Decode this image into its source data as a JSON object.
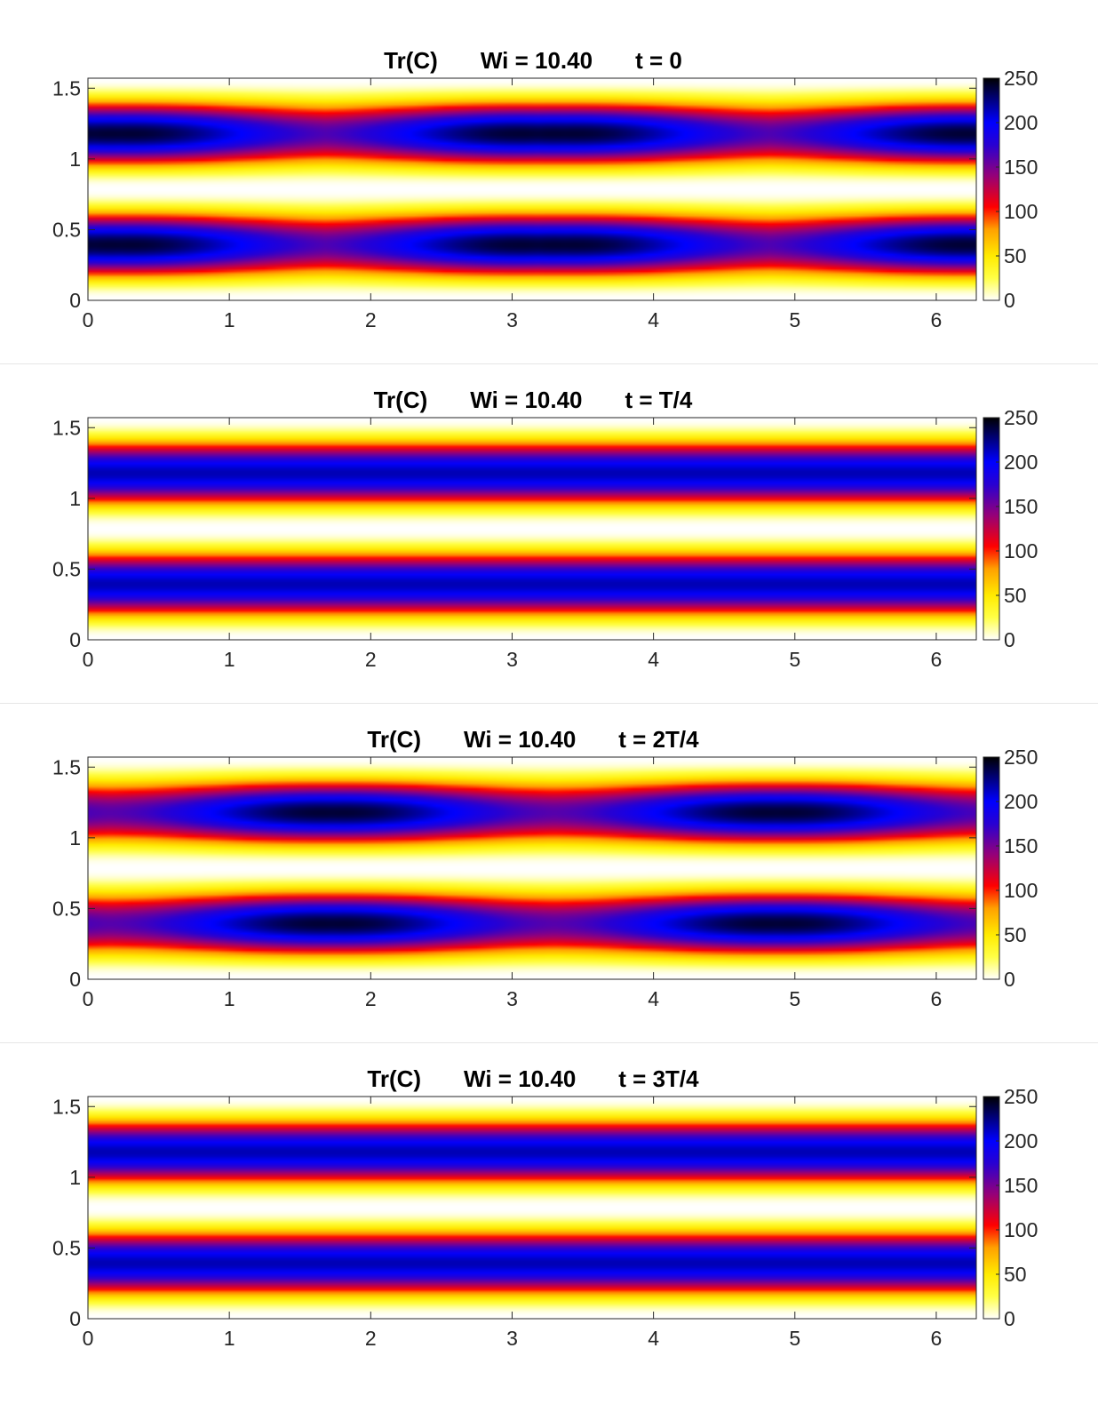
{
  "chart_data": [
    {
      "type": "heatmap",
      "title_parts": [
        "Tr(C)",
        "Wi = 10.40",
        "t = 0"
      ],
      "xlim": [
        0,
        6.2832
      ],
      "ylim": [
        0,
        1.5708
      ],
      "xticks": [
        0,
        1,
        2,
        3,
        4,
        5,
        6
      ],
      "xtick_labels": [
        "0",
        "1",
        "2",
        "3",
        "4",
        "5",
        "6"
      ],
      "yticks": [
        0,
        0.5,
        1,
        1.5
      ],
      "ytick_labels": [
        "0",
        "0.5",
        "1",
        "1.5"
      ],
      "colorbar": {
        "min": 0,
        "max": 250,
        "ticks": [
          0,
          50,
          100,
          150,
          200,
          250
        ],
        "tick_labels": [
          "0",
          "50",
          "100",
          "150",
          "200",
          "250"
        ],
        "colormap": "inverted hot (white-yellow-red-blue-black)"
      },
      "field": {
        "bands_y": [
          0.39,
          1.18
        ],
        "band_peak": 200,
        "modulation": 40,
        "modulation_x_wavenumber": 2,
        "max_value_at_x": [
          0.3,
          3.3,
          6.2
        ],
        "min_value_at_y": [
          0.0,
          0.79,
          1.57
        ],
        "min_value": 0
      }
    },
    {
      "type": "heatmap",
      "title_parts": [
        "Tr(C)",
        "Wi = 10.40",
        "t = T/4"
      ],
      "xlim": [
        0,
        6.2832
      ],
      "ylim": [
        0,
        1.5708
      ],
      "xticks": [
        0,
        1,
        2,
        3,
        4,
        5,
        6
      ],
      "xtick_labels": [
        "0",
        "1",
        "2",
        "3",
        "4",
        "5",
        "6"
      ],
      "yticks": [
        0,
        0.5,
        1,
        1.5
      ],
      "ytick_labels": [
        "0",
        "0.5",
        "1",
        "1.5"
      ],
      "colorbar": {
        "min": 0,
        "max": 250,
        "ticks": [
          0,
          50,
          100,
          150,
          200,
          250
        ],
        "tick_labels": [
          "0",
          "50",
          "100",
          "150",
          "200",
          "250"
        ],
        "colormap": "inverted hot (white-yellow-red-blue-black)"
      },
      "field": {
        "bands_y": [
          0.39,
          1.18
        ],
        "band_peak": 215,
        "modulation": 0,
        "modulation_x_wavenumber": 2,
        "max_value_at_x": [],
        "min_value_at_y": [
          0.0,
          0.79,
          1.57
        ],
        "min_value": 0
      }
    },
    {
      "type": "heatmap",
      "title_parts": [
        "Tr(C)",
        "Wi = 10.40",
        "t = 2T/4"
      ],
      "xlim": [
        0,
        6.2832
      ],
      "ylim": [
        0,
        1.5708
      ],
      "xticks": [
        0,
        1,
        2,
        3,
        4,
        5,
        6
      ],
      "xtick_labels": [
        "0",
        "1",
        "2",
        "3",
        "4",
        "5",
        "6"
      ],
      "yticks": [
        0,
        0.5,
        1,
        1.5
      ],
      "ytick_labels": [
        "0",
        "0.5",
        "1",
        "1.5"
      ],
      "colorbar": {
        "min": 0,
        "max": 250,
        "ticks": [
          0,
          50,
          100,
          150,
          200,
          250
        ],
        "tick_labels": [
          "0",
          "50",
          "100",
          "150",
          "200",
          "250"
        ],
        "colormap": "inverted hot (white-yellow-red-blue-black)"
      },
      "field": {
        "bands_y": [
          0.39,
          1.18
        ],
        "band_peak": 200,
        "modulation": 40,
        "modulation_x_wavenumber": 2,
        "max_value_at_x": [
          1.8,
          4.8
        ],
        "min_value_at_y": [
          0.0,
          0.79,
          1.57
        ],
        "min_value": 0
      }
    },
    {
      "type": "heatmap",
      "title_parts": [
        "Tr(C)",
        "Wi = 10.40",
        "t = 3T/4"
      ],
      "xlim": [
        0,
        6.2832
      ],
      "ylim": [
        0,
        1.5708
      ],
      "xticks": [
        0,
        1,
        2,
        3,
        4,
        5,
        6
      ],
      "xtick_labels": [
        "0",
        "1",
        "2",
        "3",
        "4",
        "5",
        "6"
      ],
      "yticks": [
        0,
        0.5,
        1,
        1.5
      ],
      "ytick_labels": [
        "0",
        "0.5",
        "1",
        "1.5"
      ],
      "colorbar": {
        "min": 0,
        "max": 250,
        "ticks": [
          0,
          50,
          100,
          150,
          200,
          250
        ],
        "tick_labels": [
          "0",
          "50",
          "100",
          "150",
          "200",
          "250"
        ],
        "colormap": "inverted hot (white-yellow-red-blue-black)"
      },
      "field": {
        "bands_y": [
          0.39,
          1.18
        ],
        "band_peak": 215,
        "modulation": 0,
        "modulation_x_wavenumber": 2,
        "max_value_at_x": [],
        "min_value_at_y": [
          0.0,
          0.79,
          1.57
        ],
        "min_value": 0
      }
    }
  ]
}
